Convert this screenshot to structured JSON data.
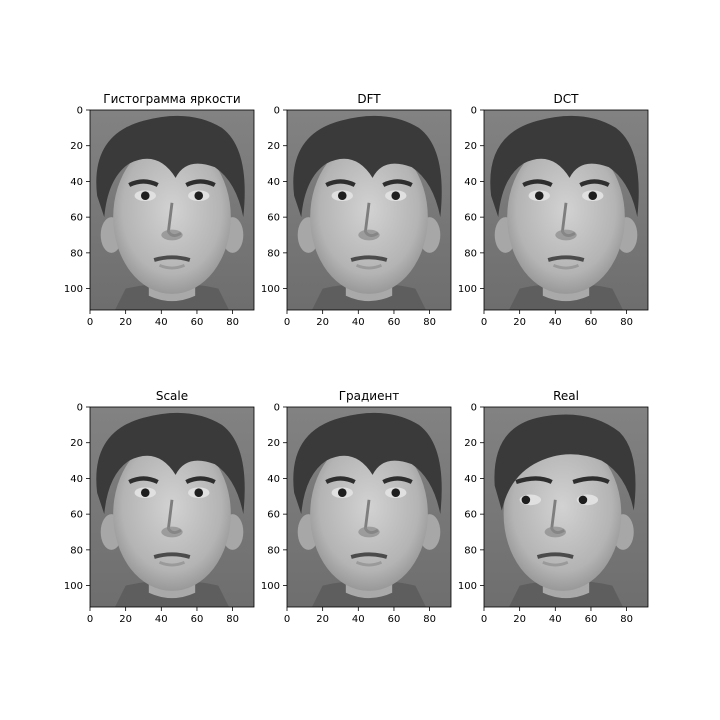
{
  "chart_data": [
    {
      "type": "image",
      "title": "Гистограмма яркости",
      "xlim": [
        0,
        92
      ],
      "ylim": [
        112,
        0
      ],
      "xticks": [
        0,
        20,
        40,
        60,
        80
      ],
      "yticks": [
        0,
        20,
        40,
        60,
        80,
        100
      ],
      "image": "grayscale face photo, frontal pose"
    },
    {
      "type": "image",
      "title": "DFT",
      "xlim": [
        0,
        92
      ],
      "ylim": [
        112,
        0
      ],
      "xticks": [
        0,
        20,
        40,
        60,
        80
      ],
      "yticks": [
        0,
        20,
        40,
        60,
        80,
        100
      ],
      "image": "grayscale face photo, frontal pose"
    },
    {
      "type": "image",
      "title": "DCT",
      "xlim": [
        0,
        92
      ],
      "ylim": [
        112,
        0
      ],
      "xticks": [
        0,
        20,
        40,
        60,
        80
      ],
      "yticks": [
        0,
        20,
        40,
        60,
        80,
        100
      ],
      "image": "grayscale face photo, frontal pose"
    },
    {
      "type": "image",
      "title": "Scale",
      "xlim": [
        0,
        92
      ],
      "ylim": [
        112,
        0
      ],
      "xticks": [
        0,
        20,
        40,
        60,
        80
      ],
      "yticks": [
        0,
        20,
        40,
        60,
        80,
        100
      ],
      "image": "grayscale face photo, frontal pose"
    },
    {
      "type": "image",
      "title": "Градиент",
      "xlim": [
        0,
        92
      ],
      "ylim": [
        112,
        0
      ],
      "xticks": [
        0,
        20,
        40,
        60,
        80
      ],
      "yticks": [
        0,
        20,
        40,
        60,
        80,
        100
      ],
      "image": "grayscale face photo, frontal pose"
    },
    {
      "type": "image",
      "title": "Real",
      "xlim": [
        0,
        92
      ],
      "ylim": [
        112,
        0
      ],
      "xticks": [
        0,
        20,
        40,
        60,
        80
      ],
      "yticks": [
        0,
        20,
        40,
        60,
        80,
        100
      ],
      "image": "grayscale face photo, head turned, eyes looking left"
    }
  ],
  "colors": {
    "background": "#ffffff",
    "axis": "#000000",
    "photo_bg": "#7b7b7b",
    "hair": "#3a3a3a",
    "skin": "#b9b9b9",
    "shirt": "#5e5e5e"
  }
}
